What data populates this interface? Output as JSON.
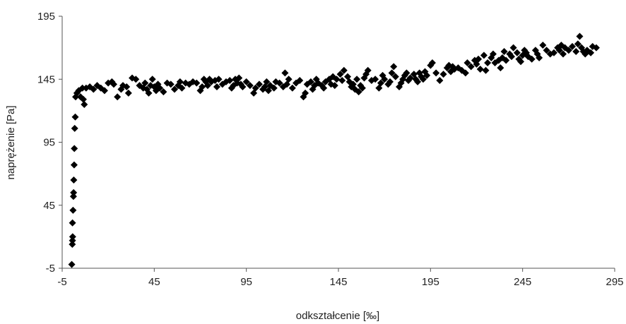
{
  "chart_data": {
    "type": "scatter",
    "title": "",
    "xlabel": "odkształcenie [‰]",
    "ylabel": "naprężenie [Pa]",
    "xlim": [
      -5,
      295
    ],
    "ylim": [
      -5,
      195
    ],
    "x_ticks": [
      "-5",
      "45",
      "95",
      "145",
      "195",
      "245",
      "295"
    ],
    "y_ticks": [
      "-5",
      "45",
      "95",
      "145",
      "195"
    ],
    "grid": false,
    "legend": "none",
    "marker": "diamond",
    "marker_color": "#000000",
    "series": [
      {
        "points": [
          [
            0.2,
            -2
          ],
          [
            0.5,
            14
          ],
          [
            0.6,
            17
          ],
          [
            0.7,
            20
          ],
          [
            0.6,
            31
          ],
          [
            0.9,
            41
          ],
          [
            1.1,
            52
          ],
          [
            1.2,
            55
          ],
          [
            1.3,
            65
          ],
          [
            1.5,
            77
          ],
          [
            1.6,
            90
          ],
          [
            1.8,
            106
          ],
          [
            2.1,
            115
          ],
          [
            2.3,
            131
          ],
          [
            3.0,
            134
          ],
          [
            4.0,
            136
          ],
          [
            5.0,
            131
          ],
          [
            6.0,
            138
          ],
          [
            6.5,
            129
          ],
          [
            7.0,
            125
          ],
          [
            8,
            138
          ],
          [
            10,
            139
          ],
          [
            12,
            137
          ],
          [
            14,
            140
          ],
          [
            16,
            138
          ],
          [
            18,
            136
          ],
          [
            20,
            142
          ],
          [
            22,
            143
          ],
          [
            23,
            141
          ],
          [
            25,
            131
          ],
          [
            27,
            137
          ],
          [
            28,
            140
          ],
          [
            30,
            139
          ],
          [
            31,
            134
          ],
          [
            33,
            146
          ],
          [
            35,
            145
          ],
          [
            37,
            140
          ],
          [
            39,
            138
          ],
          [
            40,
            142
          ],
          [
            41,
            137
          ],
          [
            42,
            134
          ],
          [
            43,
            140
          ],
          [
            44,
            145
          ],
          [
            45,
            139
          ],
          [
            46,
            136
          ],
          [
            47,
            141
          ],
          [
            48,
            138
          ],
          [
            50,
            135
          ],
          [
            52,
            142
          ],
          [
            54,
            141
          ],
          [
            56,
            137
          ],
          [
            58,
            140
          ],
          [
            59,
            143
          ],
          [
            60,
            138
          ],
          [
            62,
            142
          ],
          [
            64,
            141
          ],
          [
            66,
            143
          ],
          [
            68,
            142
          ],
          [
            70,
            136
          ],
          [
            71,
            139
          ],
          [
            72,
            145
          ],
          [
            73,
            143
          ],
          [
            74,
            140
          ],
          [
            75,
            145
          ],
          [
            76,
            143
          ],
          [
            78,
            144
          ],
          [
            79,
            139
          ],
          [
            80,
            145
          ],
          [
            82,
            141
          ],
          [
            84,
            143
          ],
          [
            86,
            144
          ],
          [
            87,
            138
          ],
          [
            88,
            140
          ],
          [
            89,
            145
          ],
          [
            90,
            142
          ],
          [
            91,
            146
          ],
          [
            92,
            141
          ],
          [
            93,
            139
          ],
          [
            95,
            143
          ],
          [
            97,
            140
          ],
          [
            99,
            134
          ],
          [
            100,
            138
          ],
          [
            102,
            141
          ],
          [
            104,
            137
          ],
          [
            105,
            139
          ],
          [
            106,
            143
          ],
          [
            107,
            136
          ],
          [
            108,
            140
          ],
          [
            110,
            138
          ],
          [
            111,
            143
          ],
          [
            113,
            142
          ],
          [
            115,
            139
          ],
          [
            116,
            150
          ],
          [
            117,
            141
          ],
          [
            118,
            145
          ],
          [
            120,
            138
          ],
          [
            122,
            142
          ],
          [
            124,
            144
          ],
          [
            126,
            131
          ],
          [
            127,
            134
          ],
          [
            128,
            141
          ],
          [
            130,
            143
          ],
          [
            131,
            137
          ],
          [
            132,
            140
          ],
          [
            133,
            145
          ],
          [
            134,
            142
          ],
          [
            136,
            140
          ],
          [
            137,
            138
          ],
          [
            138,
            143
          ],
          [
            140,
            145
          ],
          [
            141,
            141
          ],
          [
            142,
            147
          ],
          [
            143,
            140
          ],
          [
            144,
            145
          ],
          [
            146,
            149
          ],
          [
            147,
            144
          ],
          [
            148,
            152
          ],
          [
            150,
            147
          ],
          [
            151,
            143
          ],
          [
            152,
            139
          ],
          [
            153,
            141
          ],
          [
            154,
            137
          ],
          [
            155,
            145
          ],
          [
            156,
            135
          ],
          [
            157,
            140
          ],
          [
            158,
            138
          ],
          [
            159,
            146
          ],
          [
            160,
            149
          ],
          [
            161,
            152
          ],
          [
            163,
            144
          ],
          [
            165,
            145
          ],
          [
            167,
            138
          ],
          [
            168,
            142
          ],
          [
            169,
            148
          ],
          [
            170,
            145
          ],
          [
            172,
            141
          ],
          [
            173,
            143
          ],
          [
            174,
            150
          ],
          [
            175,
            155
          ],
          [
            176,
            147
          ],
          [
            178,
            139
          ],
          [
            179,
            142
          ],
          [
            180,
            145
          ],
          [
            181,
            148
          ],
          [
            182,
            150
          ],
          [
            183,
            144
          ],
          [
            184,
            146
          ],
          [
            186,
            149
          ],
          [
            187,
            145
          ],
          [
            188,
            143
          ],
          [
            189,
            150
          ],
          [
            190,
            147
          ],
          [
            191,
            145
          ],
          [
            192,
            151
          ],
          [
            193,
            148
          ],
          [
            195,
            156
          ],
          [
            196,
            158
          ],
          [
            198,
            150
          ],
          [
            200,
            144
          ],
          [
            202,
            149
          ],
          [
            204,
            154
          ],
          [
            205,
            156
          ],
          [
            206,
            151
          ],
          [
            207,
            155
          ],
          [
            208,
            153
          ],
          [
            210,
            154
          ],
          [
            212,
            152
          ],
          [
            214,
            150
          ],
          [
            215,
            158
          ],
          [
            217,
            155
          ],
          [
            219,
            160
          ],
          [
            220,
            157
          ],
          [
            221,
            161
          ],
          [
            222,
            153
          ],
          [
            224,
            164
          ],
          [
            225,
            152
          ],
          [
            226,
            158
          ],
          [
            228,
            162
          ],
          [
            229,
            165
          ],
          [
            230,
            158
          ],
          [
            232,
            160
          ],
          [
            233,
            154
          ],
          [
            234,
            162
          ],
          [
            235,
            167
          ],
          [
            236,
            160
          ],
          [
            238,
            165
          ],
          [
            239,
            163
          ],
          [
            240,
            170
          ],
          [
            242,
            166
          ],
          [
            243,
            161
          ],
          [
            244,
            159
          ],
          [
            245,
            164
          ],
          [
            246,
            168
          ],
          [
            247,
            166
          ],
          [
            248,
            163
          ],
          [
            250,
            161
          ],
          [
            252,
            168
          ],
          [
            253,
            165
          ],
          [
            254,
            162
          ],
          [
            256,
            172
          ],
          [
            258,
            168
          ],
          [
            260,
            165
          ],
          [
            262,
            166
          ],
          [
            264,
            170
          ],
          [
            265,
            168
          ],
          [
            266,
            172
          ],
          [
            267,
            165
          ],
          [
            268,
            170
          ],
          [
            270,
            168
          ],
          [
            272,
            171
          ],
          [
            274,
            167
          ],
          [
            275,
            173
          ],
          [
            276,
            179
          ],
          [
            277,
            170
          ],
          [
            278,
            167
          ],
          [
            279,
            165
          ],
          [
            280,
            168
          ],
          [
            282,
            166
          ],
          [
            283,
            171
          ],
          [
            285,
            170
          ]
        ]
      }
    ]
  }
}
